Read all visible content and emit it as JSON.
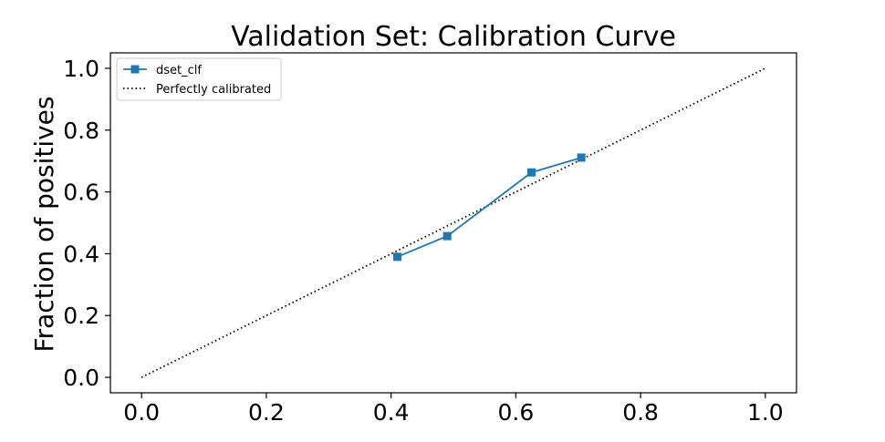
{
  "chart_data": {
    "type": "line",
    "title": "Validation Set: Calibration Curve",
    "xlabel": "",
    "ylabel": "Fraction of positives",
    "xlim": [
      -0.05,
      1.05
    ],
    "ylim": [
      -0.05,
      1.05
    ],
    "xticks": [
      "0.0",
      "0.2",
      "0.4",
      "0.6",
      "0.8",
      "1.0"
    ],
    "yticks": [
      "0.0",
      "0.2",
      "0.4",
      "0.6",
      "0.8",
      "1.0"
    ],
    "grid": false,
    "legend_position": "top-left",
    "series": [
      {
        "name": "dset_clf",
        "style": "solid-line-square-markers",
        "color": "#1f77b4",
        "x": [
          0.41,
          0.49,
          0.625,
          0.705
        ],
        "y": [
          0.39,
          0.457,
          0.663,
          0.711
        ]
      },
      {
        "name": "Perfectly calibrated",
        "style": "dotted-line",
        "color": "#000000",
        "x": [
          0.0,
          1.0
        ],
        "y": [
          0.0,
          1.0
        ]
      }
    ]
  }
}
